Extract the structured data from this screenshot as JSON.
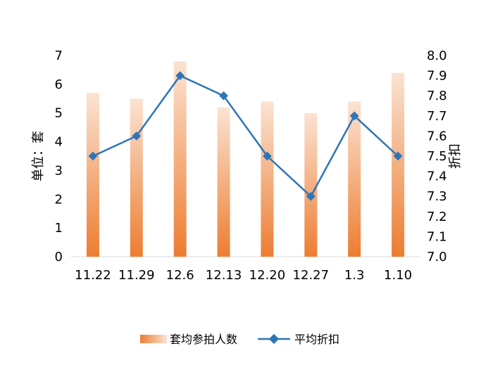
{
  "chart_data": {
    "type": "bar",
    "categories": [
      "11.22",
      "11.29",
      "12.6",
      "12.13",
      "12.20",
      "12.27",
      "1.3",
      "1.10"
    ],
    "series": [
      {
        "name": "套均参拍人数",
        "type": "bar",
        "axis": "left",
        "values": [
          5.7,
          5.5,
          6.8,
          5.2,
          5.4,
          5.0,
          5.4,
          6.4
        ]
      },
      {
        "name": "平均折扣",
        "type": "line",
        "axis": "right",
        "values": [
          7.5,
          7.6,
          7.9,
          7.8,
          7.5,
          7.3,
          7.7,
          7.5
        ]
      }
    ],
    "ylabel": "单位：套",
    "y2label": "折扣",
    "ylim": [
      0,
      7
    ],
    "y2lim": [
      7.0,
      8.0
    ],
    "yticks": [
      "0",
      "1",
      "2",
      "3",
      "4",
      "5",
      "6",
      "7"
    ],
    "y2ticks": [
      "7.0",
      "7.1",
      "7.2",
      "7.3",
      "7.4",
      "7.5",
      "7.6",
      "7.7",
      "7.8",
      "7.9",
      "8.0"
    ],
    "legend_position": "bottom",
    "colors": {
      "bar_top": "#fbe3d3",
      "bar_bottom": "#ed7d31",
      "line": "#2e75b6"
    }
  }
}
